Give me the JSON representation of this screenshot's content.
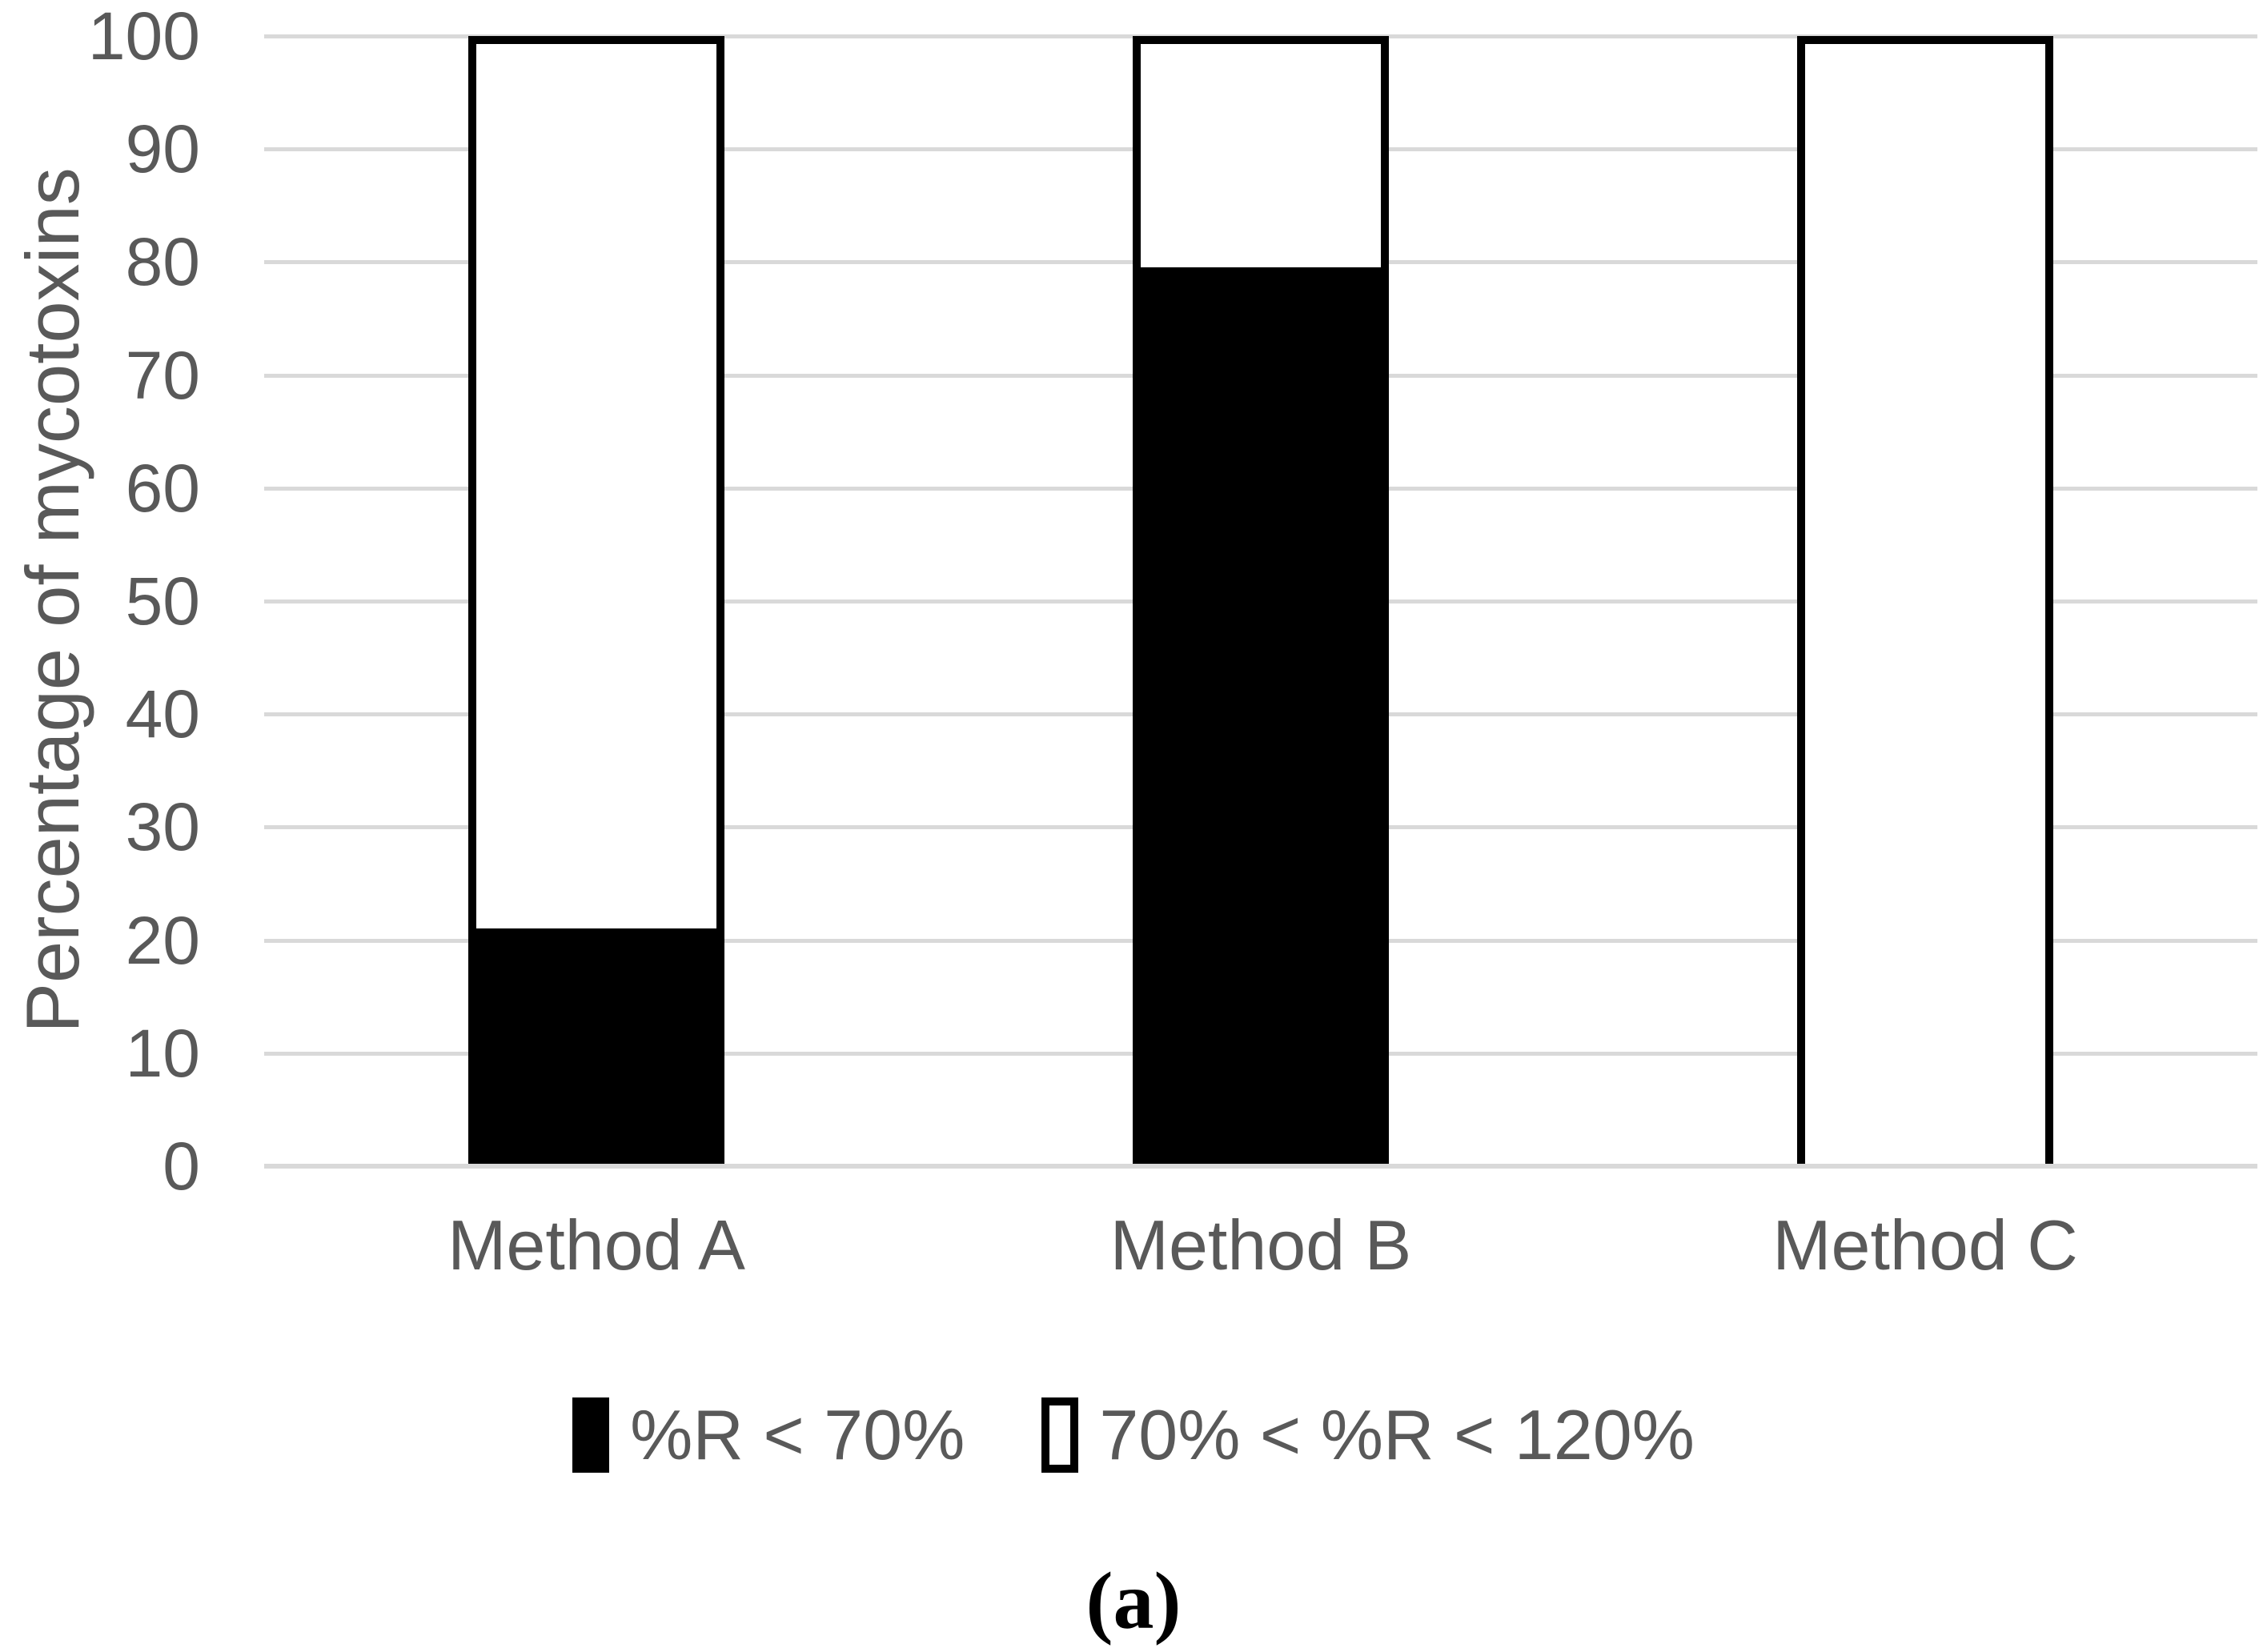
{
  "figure": {
    "background": "#ffffff",
    "caption": "(a)"
  },
  "chart_data": {
    "type": "bar",
    "stacked": true,
    "title": "",
    "categories": [
      "Method A",
      "Method B",
      "Method C"
    ],
    "series": [
      {
        "name": "%R < 70%",
        "color": "#000000",
        "values": [
          21,
          79.5,
          0
        ]
      },
      {
        "name": "70% < %R < 120%",
        "color": "#ffffff",
        "values": [
          79,
          20.5,
          100
        ]
      }
    ],
    "xlabel": "",
    "ylabel": "Percentage of mycotoxins",
    "ylim": [
      0,
      100
    ],
    "yticks": [
      0,
      10,
      20,
      30,
      40,
      50,
      60,
      70,
      80,
      90,
      100
    ],
    "grid": "horizontal",
    "legend_position": "bottom",
    "colors": {
      "axis_text": "#595959",
      "gridline": "#d9d9d9",
      "bar_border": "#000000",
      "black_series": "#000000",
      "white_series": "#ffffff"
    }
  }
}
